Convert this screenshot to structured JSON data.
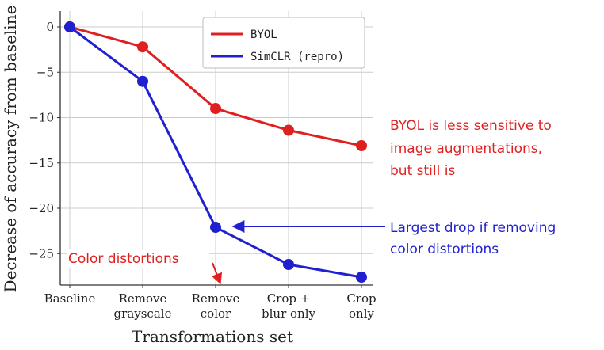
{
  "chart_data": {
    "type": "line",
    "categories": [
      [
        "Baseline"
      ],
      [
        "Remove",
        "grayscale"
      ],
      [
        "Remove",
        "color"
      ],
      [
        "Crop +",
        "blur only"
      ],
      [
        "Crop",
        "only"
      ]
    ],
    "series": [
      {
        "name": "BYOL",
        "values": [
          0,
          -2.2,
          -9.0,
          -11.4,
          -13.1
        ],
        "color": "#e02020"
      },
      {
        "name": "SimCLR (repro)",
        "values": [
          0,
          -6.0,
          -22.1,
          -26.2,
          -27.6
        ],
        "color": "#2020d0"
      }
    ],
    "xlabel": "Transformations set",
    "ylabel": "Decrease of accuracy from baseline",
    "ylim": [
      -28,
      2
    ],
    "yticks": [
      0,
      -5,
      -10,
      -15,
      -20,
      -25
    ],
    "grid": true,
    "legend_position": "top-right"
  },
  "annotations": {
    "byol_note": [
      "BYOL is less sensitive to",
      "image augmentations,",
      "but still is"
    ],
    "drop_note": [
      "Largest drop if removing",
      "color distortions"
    ],
    "color_note": "Color distortions",
    "colors": {
      "red": "#e02020",
      "blue": "#2020d0"
    }
  }
}
